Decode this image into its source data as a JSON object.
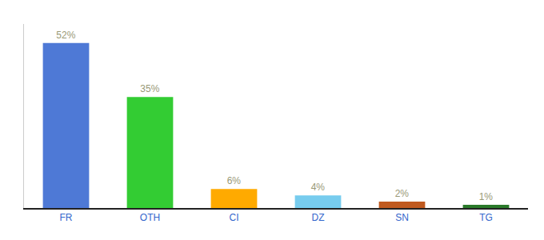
{
  "chart_data": {
    "type": "bar",
    "categories": [
      "FR",
      "OTH",
      "CI",
      "DZ",
      "SN",
      "TG"
    ],
    "values": [
      52,
      35,
      6,
      4,
      2,
      1
    ],
    "value_labels": [
      "52%",
      "35%",
      "6%",
      "4%",
      "2%",
      "1%"
    ],
    "colors": [
      "#4e79d6",
      "#33cc33",
      "#ffaa00",
      "#77ccee",
      "#c05a1f",
      "#2a7a2a"
    ],
    "ylim": [
      0,
      58
    ],
    "grid": false,
    "data_labels": true,
    "tick_labels": "x"
  }
}
